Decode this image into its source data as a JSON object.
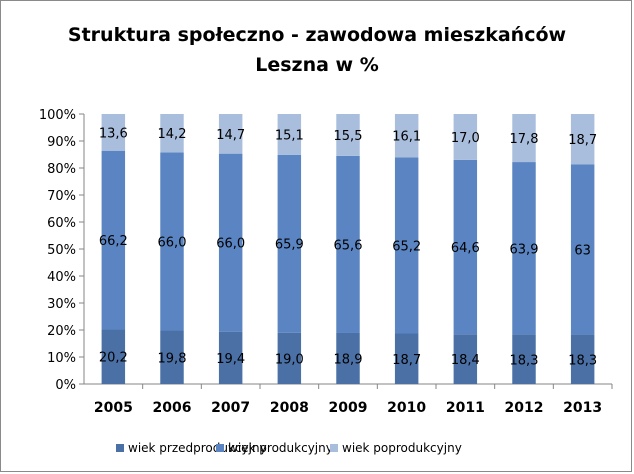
{
  "chart_data": {
    "type": "bar",
    "stacked": "percent",
    "title_line1": "Struktura społeczno - zawodowa mieszkańców",
    "title_line2": "Leszna w %",
    "categories": [
      "2005",
      "2006",
      "2007",
      "2008",
      "2009",
      "2010",
      "2011",
      "2012",
      "2013"
    ],
    "series": [
      {
        "name": "wiek przedprodukcyjny",
        "color": "#4a70a6",
        "values": [
          20.2,
          19.8,
          19.4,
          19.0,
          18.9,
          18.7,
          18.4,
          18.3,
          18.3
        ],
        "labels": [
          "20,2",
          "19,8",
          "19,4",
          "19,0",
          "18,9",
          "18,7",
          "18,4",
          "18,3",
          "18,3"
        ]
      },
      {
        "name": "wiek produkcyjny",
        "color": "#5a85c2",
        "values": [
          66.2,
          66.0,
          66.0,
          65.9,
          65.6,
          65.2,
          64.6,
          63.9,
          63
        ],
        "labels": [
          "66,2",
          "66,0",
          "66,0",
          "65,9",
          "65,6",
          "65,2",
          "64,6",
          "63,9",
          "63"
        ]
      },
      {
        "name": "wiek poprodukcyjny",
        "color": "#a9bedd",
        "values": [
          13.6,
          14.2,
          14.7,
          15.1,
          15.5,
          16.1,
          17.0,
          17.8,
          18.7
        ],
        "labels": [
          "13,6",
          "14,2",
          "14,7",
          "15,1",
          "15,5",
          "16,1",
          "17,0",
          "17,8",
          "18,7"
        ]
      }
    ],
    "yticks": [
      "0%",
      "10%",
      "20%",
      "30%",
      "40%",
      "50%",
      "60%",
      "70%",
      "80%",
      "90%",
      "100%"
    ],
    "ylim": [
      0,
      100
    ],
    "grid": false,
    "legend_position": "bottom"
  }
}
